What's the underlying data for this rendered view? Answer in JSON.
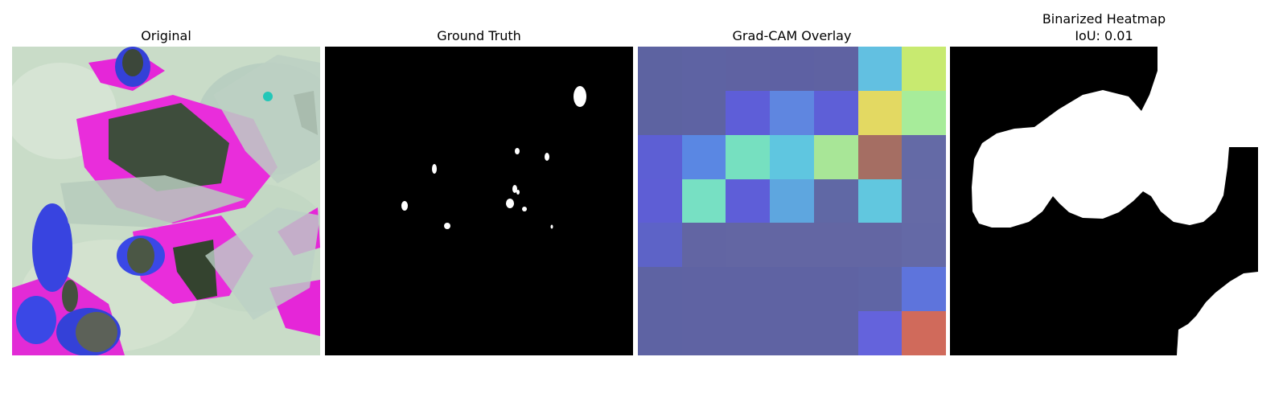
{
  "panels": [
    {
      "id": "original",
      "title": "Original"
    },
    {
      "id": "ground_truth",
      "title": "Ground Truth"
    },
    {
      "id": "gradcam",
      "title": "Grad-CAM Overlay"
    },
    {
      "id": "binarized",
      "title": "Binarized Heatmap",
      "subtitle": "IoU: 0.01"
    }
  ],
  "gradcam_grid": {
    "rows": 7,
    "cols": 7,
    "cell_colors": [
      [
        "#5d63a1",
        "#5e63a3",
        "#5f62a2",
        "#5e61a3",
        "#5f62a2",
        "#62c0e1",
        "#c8ea70"
      ],
      [
        "#5d63a1",
        "#5e63a3",
        "#5e5ed8",
        "#5f86e0",
        "#5e5fd7",
        "#e3d962",
        "#a7ec9a"
      ],
      [
        "#5d5fd4",
        "#5a87e3",
        "#76e0c0",
        "#5fc6e0",
        "#a8e697",
        "#a56e63",
        "#646aa6"
      ],
      [
        "#5e5ed5",
        "#77e0c3",
        "#5e5ed8",
        "#5ea6df",
        "#6068a5",
        "#61c7df",
        "#656aa6"
      ],
      [
        "#5d63c7",
        "#6265a3",
        "#6366a3",
        "#6366a3",
        "#6366a3",
        "#6366a3",
        "#6469a6"
      ],
      [
        "#5e63a3",
        "#5f63a3",
        "#5f63a3",
        "#5f63a3",
        "#5f63a3",
        "#5f65a5",
        "#5e74dc"
      ],
      [
        "#5e63a3",
        "#5f63a3",
        "#5f63a3",
        "#5f63a3",
        "#5f63a3",
        "#6463dc",
        "#d06a5b"
      ]
    ]
  }
}
